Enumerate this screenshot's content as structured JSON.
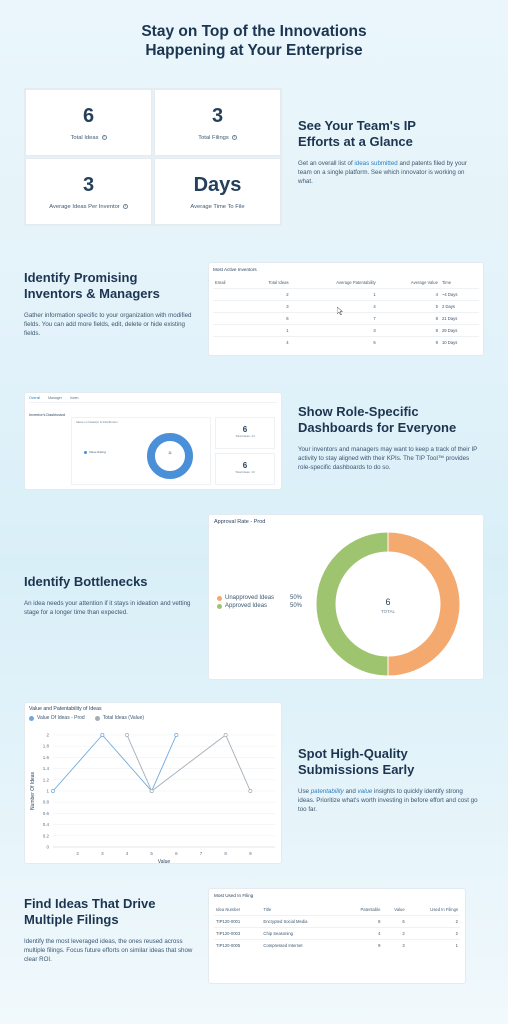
{
  "hero": {
    "line1": "Stay on Top of the Innovations",
    "line2": "Happening at Your Enterprise"
  },
  "stats": [
    {
      "value": "6",
      "label": "Total Ideas"
    },
    {
      "value": "3",
      "label": "Total Filings"
    },
    {
      "value": "3",
      "label": "Average Ideas Per Inventor"
    },
    {
      "value": "Days",
      "label": "Average Time To File"
    }
  ],
  "section1": {
    "title1": "See Your Team's IP",
    "title2": "Efforts at a Glance",
    "desc_pre": "Get an overall list of ",
    "desc_hl": "ideas submitted",
    "desc_post": " and patents filed by your team on a single platform. See which innovator is working on what."
  },
  "section2": {
    "title1": "Identify Promising",
    "title2": "Inventors & Managers",
    "desc": "Gather information specific to your organization with modified fields. You can add more fields, edit, delete or hide existing fields.",
    "table_title": "Most Active Inventors",
    "columns": [
      "Email",
      "Total Ideas",
      "Average Patentability",
      "Average Value",
      "Time"
    ],
    "rows": [
      [
        "",
        "2",
        "1",
        "4",
        "~4 Days"
      ],
      [
        "",
        "3",
        "4",
        "5",
        "2 Days"
      ],
      [
        "",
        "6",
        "7",
        "8",
        "21 Days"
      ],
      [
        "",
        "1",
        "3",
        "8",
        "29 Days"
      ],
      [
        "",
        "4",
        "6",
        "9",
        "10 Days"
      ]
    ]
  },
  "section3": {
    "title1": "Show Role-Specific",
    "title2": "Dashboards for Everyone",
    "desc": "Your inventors and managers may want to keep a track of their IP activity to stay aligned with their KPIs. The TIP Tool™ provides role-specific dashboards to do so.",
    "tabs": [
      "Overall",
      "Manager",
      "Inven"
    ],
    "dash_title": "Inventor's Dashboard",
    "chart_caption": "Ideas on Ideation & Distribution",
    "chart_legend": "Value Rating",
    "chart_center": "11",
    "kpi1_value": "6",
    "kpi1_label": "Total Ideas: 13",
    "kpi2_value": "6",
    "kpi2_label": "Total Ideas: 13"
  },
  "section4": {
    "title": "Identify Bottlenecks",
    "desc": "An idea needs your attention if it stays in ideation and vetting stage for a longer time than expected.",
    "card_title": "Approval Rate - Prod",
    "center_value": "6",
    "center_label": "TOTAL"
  },
  "section5": {
    "title1": "Spot High-Quality",
    "title2": "Submissions Early",
    "desc_pre": "Use ",
    "desc_hl1": "patentability",
    "desc_mid": " and ",
    "desc_hl2": "value",
    "desc_post": " insights to quickly identify strong ideas. Prioritize what's worth investing in before effort and cost go too far.",
    "card_title": "Value and Patentability of Ideas"
  },
  "section6": {
    "title1": "Find Ideas That Drive",
    "title2": "Multiple Filings",
    "desc": "Identify the most leveraged ideas, the ones reused across multiple filings. Focus future efforts on similar ideas that show clear ROI.",
    "table_title": "Most Used In Filing",
    "columns": [
      "Idea Number",
      "Title",
      "Patentable",
      "Value",
      "Used In Filings"
    ],
    "rows": [
      [
        "TIP120-0001",
        "Encrypted Social Media",
        "8",
        "6",
        "2"
      ],
      [
        "TIP120-0003",
        "Chip Seasoning",
        "4",
        "2",
        "2"
      ],
      [
        "TIP120-0005",
        "Compressed Internet",
        "9",
        "3",
        "1"
      ]
    ]
  },
  "colors": {
    "orange": "#f4a96f",
    "green": "#9ec46f",
    "blue": "#6fa9dc",
    "gray": "#a4aeb6"
  },
  "chart_data": [
    {
      "type": "pie",
      "title": "Approval Rate - Prod",
      "categories": [
        "Unapproved Ideas",
        "Approved Ideas"
      ],
      "labels": [
        "50%",
        "50%"
      ],
      "values": [
        50,
        50
      ]
    },
    {
      "type": "line",
      "title": "Value and Patentability of Ideas",
      "xlabel": "Value",
      "ylabel": "Number Of Ideas",
      "xlim": [
        1,
        10
      ],
      "ylim": [
        0,
        2
      ],
      "x_ticks": [
        "2",
        "3",
        "4",
        "5",
        "6",
        "7",
        "8",
        "9"
      ],
      "y_ticks": [
        "0",
        "0.2",
        "0.4",
        "0.6",
        "0.8",
        "1",
        "1.2",
        "1.4",
        "1.6",
        "1.8",
        "2"
      ],
      "series": [
        {
          "name": "Value Of Ideas - Prod",
          "points": [
            [
              1,
              1
            ],
            [
              3,
              2
            ],
            [
              5,
              1
            ],
            [
              6,
              2
            ]
          ]
        },
        {
          "name": "Total Ideas (Value)",
          "points": [
            [
              4,
              2
            ],
            [
              5,
              1
            ],
            [
              8,
              2
            ],
            [
              9,
              1
            ]
          ]
        }
      ]
    }
  ]
}
